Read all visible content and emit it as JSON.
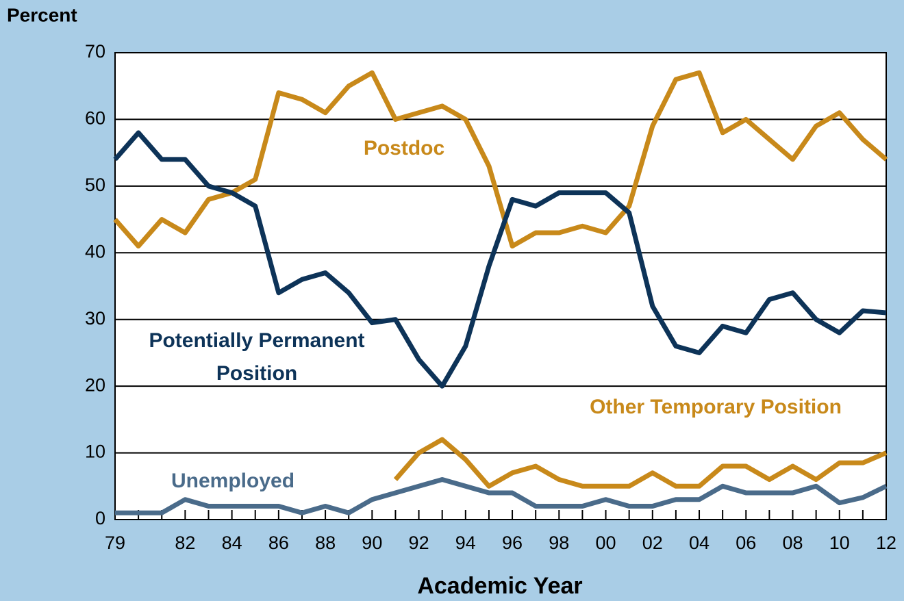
{
  "chart_data": {
    "type": "line",
    "ylabel": "Percent",
    "xlabel": "Academic Year",
    "categories": [
      "79",
      null,
      null,
      "82",
      null,
      "84",
      null,
      "86",
      null,
      "88",
      null,
      "90",
      null,
      "92",
      null,
      "94",
      null,
      "96",
      null,
      "98",
      null,
      "00",
      null,
      "02",
      null,
      "04",
      null,
      "06",
      null,
      "08",
      null,
      "10",
      null,
      "12"
    ],
    "ylim": [
      0,
      70
    ],
    "yticks": [
      0,
      10,
      20,
      30,
      40,
      50,
      60,
      70
    ],
    "grid": true,
    "series": [
      {
        "name": "Postdoc",
        "color": "#c8891a",
        "values": [
          45,
          41,
          45,
          43,
          48,
          49,
          51,
          64,
          63,
          61,
          65,
          67,
          60,
          61,
          62,
          60,
          53,
          41,
          43,
          43,
          44,
          43,
          47,
          59,
          66,
          67,
          58,
          60,
          57,
          54,
          59,
          61,
          57,
          54
        ]
      },
      {
        "name": "Potentially Permanent Position",
        "color": "#0d3358",
        "values": [
          54,
          58,
          54,
          54,
          50,
          49,
          47,
          34,
          36,
          37,
          34,
          29.5,
          30,
          24,
          20,
          26,
          38,
          48,
          47,
          49,
          49,
          49,
          46,
          32,
          26,
          25,
          29,
          28,
          33,
          34,
          30,
          28,
          31.3,
          31
        ]
      },
      {
        "name": "Other Temporary Position",
        "color": "#c8891a",
        "values": [
          null,
          null,
          null,
          null,
          null,
          null,
          null,
          null,
          null,
          null,
          null,
          null,
          6,
          10,
          12,
          9,
          5,
          7,
          8,
          6,
          5,
          5,
          5,
          7,
          5,
          5,
          8,
          8,
          6,
          8,
          6,
          8.5,
          8.5,
          10
        ]
      },
      {
        "name": "Unemployed",
        "color": "#4a6b8a",
        "values": [
          1,
          1,
          1,
          3,
          2,
          2,
          2,
          2,
          1,
          2,
          1,
          3,
          4,
          5,
          6,
          5,
          4,
          4,
          2,
          2,
          2,
          3,
          2,
          2,
          3,
          3,
          5,
          4,
          4,
          4,
          5,
          2.5,
          3.3,
          5
        ]
      }
    ]
  }
}
